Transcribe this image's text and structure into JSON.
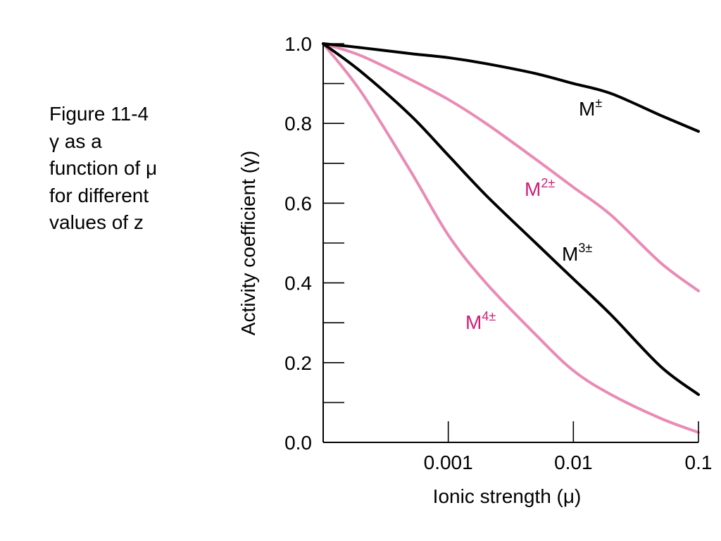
{
  "caption": {
    "lines": [
      "Figure 11-4",
      "γ as a",
      "function of μ",
      "for different",
      "values of z"
    ]
  },
  "chart_data": {
    "type": "line",
    "xlabel": "Ionic strength (μ)",
    "ylabel": "Activity coefficient (γ)",
    "x_scale": "log",
    "xlim": [
      0.0001,
      0.1
    ],
    "ylim": [
      0,
      1.0
    ],
    "x_ticks": [
      0.001,
      0.01,
      0.1
    ],
    "x_tick_labels": [
      "0.001",
      "0.01",
      "0.1"
    ],
    "y_ticks": [
      0,
      0.2,
      0.4,
      0.6,
      0.8,
      1.0
    ],
    "y_tick_labels": [
      "0.0",
      "0.2",
      "0.4",
      "0.6",
      "0.8",
      "1.0"
    ],
    "y_minor_ticks": [
      0.1,
      0.3,
      0.5,
      0.7,
      0.9
    ],
    "grid": false,
    "legend": "inline labels",
    "colors": {
      "black_series": "#000000",
      "pink_series": "#e98bb4",
      "pink_label": "#cc1f7a"
    },
    "x": [
      0.0001,
      0.0002,
      0.0005,
      0.001,
      0.002,
      0.005,
      0.01,
      0.02,
      0.05,
      0.1
    ],
    "series": [
      {
        "name": "M±",
        "label_base": "M",
        "label_sup": "±",
        "color": "#000000",
        "label_color": "#000000",
        "values": [
          1.0,
          0.99,
          0.975,
          0.965,
          0.95,
          0.925,
          0.9,
          0.875,
          0.82,
          0.78
        ]
      },
      {
        "name": "M2±",
        "label_base": "M",
        "label_sup": "2±",
        "color": "#e98bb4",
        "label_color": "#cc1f7a",
        "values": [
          1.0,
          0.97,
          0.91,
          0.86,
          0.8,
          0.71,
          0.64,
          0.57,
          0.45,
          0.38
        ]
      },
      {
        "name": "M3±",
        "label_base": "M",
        "label_sup": "3±",
        "color": "#000000",
        "label_color": "#000000",
        "values": [
          1.0,
          0.93,
          0.82,
          0.72,
          0.62,
          0.5,
          0.41,
          0.32,
          0.19,
          0.12
        ]
      },
      {
        "name": "M4±",
        "label_base": "M",
        "label_sup": "4±",
        "color": "#e98bb4",
        "label_color": "#cc1f7a",
        "values": [
          1.0,
          0.88,
          0.68,
          0.52,
          0.4,
          0.27,
          0.18,
          0.12,
          0.06,
          0.025
        ]
      }
    ]
  }
}
